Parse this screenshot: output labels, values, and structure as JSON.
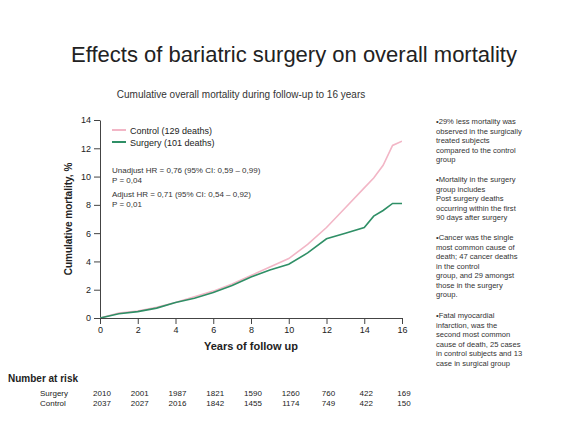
{
  "chart_data": {
    "type": "line",
    "title": "Effects of bariatric surgery on overall mortality",
    "subtitle": "Cumulative overall mortality during follow-up to 16 years",
    "x_label": "Years of follow up",
    "y_label": "Cumulative mortality, %",
    "x": [
      0,
      1,
      2,
      3,
      4,
      5,
      6,
      7,
      8,
      9,
      10,
      11,
      12,
      13,
      14,
      14.5,
      15,
      15.5,
      16
    ],
    "series": [
      {
        "name": "Control (129 deaths)",
        "color": "#f2b6c6",
        "line_style": "solid",
        "values": [
          0,
          0.35,
          0.5,
          0.75,
          1.1,
          1.5,
          1.9,
          2.4,
          3.0,
          3.6,
          4.2,
          5.2,
          6.4,
          7.8,
          9.2,
          9.9,
          10.8,
          12.2,
          12.5
        ]
      },
      {
        "name": "Surgery (101 deaths)",
        "color": "#2f8f66",
        "line_style": "solid",
        "values": [
          0,
          0.3,
          0.45,
          0.7,
          1.1,
          1.4,
          1.8,
          2.3,
          2.9,
          3.4,
          3.8,
          4.6,
          5.6,
          6.0,
          6.4,
          7.2,
          7.6,
          8.1,
          8.1
        ]
      }
    ],
    "xlim": [
      0,
      16
    ],
    "xticks": [
      0,
      2,
      4,
      6,
      8,
      10,
      12,
      14,
      16
    ],
    "ylim": [
      0,
      14
    ],
    "yticks": [
      0,
      2,
      4,
      6,
      8,
      10,
      12,
      14
    ],
    "grid": false,
    "legend": "upper left",
    "annotations": [
      "Unadjust HR = 0,76 (95% CI: 0,59 – 0,99)",
      "P = 0,04",
      "Adjust HR = 0,71 (95% CI: 0,54 – 0,92)",
      "P = 0,01"
    ],
    "number_at_risk": {
      "title": "Number at risk",
      "times": [
        0,
        2,
        4,
        6,
        8,
        10,
        12,
        14,
        16
      ],
      "rows": [
        {
          "name": "Surgery",
          "values": [
            2010,
            2001,
            1987,
            1821,
            1590,
            1260,
            760,
            422,
            169
          ]
        },
        {
          "name": "Control",
          "values": [
            2037,
            2027,
            2016,
            1842,
            1455,
            1174,
            749,
            422,
            150
          ]
        }
      ]
    },
    "notes": [
      [
        "•29% less mortality was",
        "observed in the surgically",
        "treated subjects",
        "compared to the control",
        "group"
      ],
      [
        "•Mortality in the surgery",
        "group includes",
        "Post surgery deaths",
        "occurring within the first",
        "90 days after surgery"
      ],
      [
        "•Cancer was the single",
        "most common cause of",
        "death; 47 cancer deaths",
        "in the control",
        "group, and 29 amongst",
        "those in the surgery",
        "group."
      ],
      [
        "•Fatal myocardial",
        "infarction, was the",
        "second most common",
        "cause of death, 25 cases",
        "in control subjects and 13",
        "case in surgical group"
      ]
    ]
  }
}
